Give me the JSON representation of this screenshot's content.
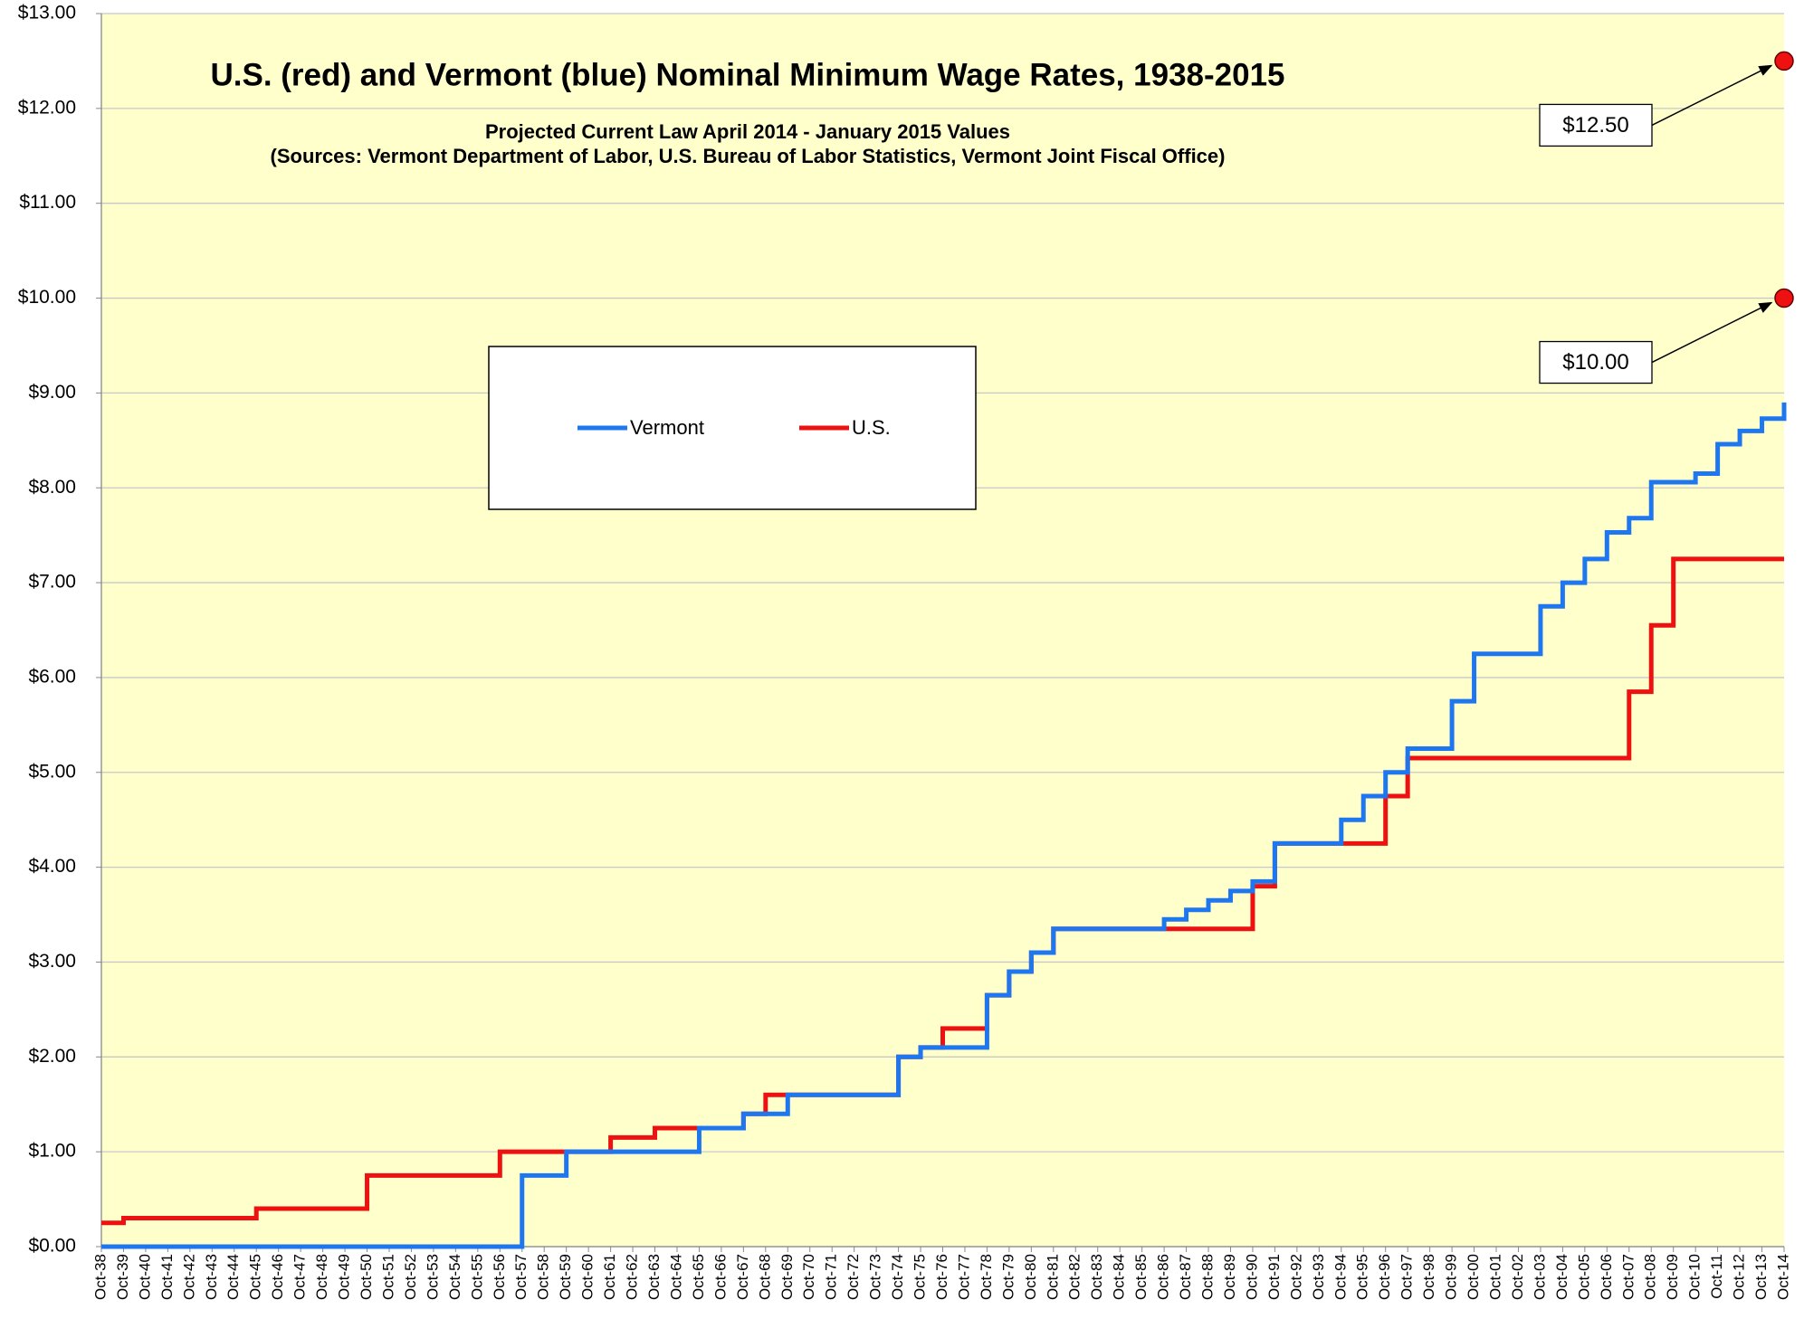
{
  "chart_data": {
    "type": "line",
    "step": "after",
    "title": "U.S. (red) and Vermont (blue) Nominal Minimum Wage Rates, 1938-2015",
    "subtitle": [
      "Projected Current Law April 2014 - January 2015 Values",
      "(Sources:  Vermont Department of Labor, U.S. Bureau of Labor Statistics,  Vermont Joint Fiscal Office)"
    ],
    "categories": [
      "Oct-38",
      "Oct-39",
      "Oct-40",
      "Oct-41",
      "Oct-42",
      "Oct-43",
      "Oct-44",
      "Oct-45",
      "Oct-46",
      "Oct-47",
      "Oct-48",
      "Oct-49",
      "Oct-50",
      "Oct-51",
      "Oct-52",
      "Oct-53",
      "Oct-54",
      "Oct-55",
      "Oct-56",
      "Oct-57",
      "Oct-58",
      "Oct-59",
      "Oct-60",
      "Oct-61",
      "Oct-62",
      "Oct-63",
      "Oct-64",
      "Oct-65",
      "Oct-66",
      "Oct-67",
      "Oct-68",
      "Oct-69",
      "Oct-70",
      "Oct-71",
      "Oct-72",
      "Oct-73",
      "Oct-74",
      "Oct-75",
      "Oct-76",
      "Oct-77",
      "Oct-78",
      "Oct-79",
      "Oct-80",
      "Oct-81",
      "Oct-82",
      "Oct-83",
      "Oct-84",
      "Oct-85",
      "Oct-86",
      "Oct-87",
      "Oct-88",
      "Oct-89",
      "Oct-90",
      "Oct-91",
      "Oct-92",
      "Oct-93",
      "Oct-94",
      "Oct-95",
      "Oct-96",
      "Oct-97",
      "Oct-98",
      "Oct-99",
      "Oct-00",
      "Oct-01",
      "Oct-02",
      "Oct-03",
      "Oct-04",
      "Oct-05",
      "Oct-06",
      "Oct-07",
      "Oct-08",
      "Oct-09",
      "Oct-10",
      "Oct-11",
      "Oct-12",
      "Oct-13",
      "Oct-14"
    ],
    "series": [
      {
        "name": "Vermont",
        "color": "#1f77f0",
        "values": [
          0,
          0,
          0,
          0,
          0,
          0,
          0,
          0,
          0,
          0,
          0,
          0,
          0,
          0,
          0,
          0,
          0,
          0,
          0,
          0.75,
          0.75,
          1.0,
          1.0,
          1.0,
          1.0,
          1.0,
          1.0,
          1.25,
          1.25,
          1.4,
          1.4,
          1.6,
          1.6,
          1.6,
          1.6,
          1.6,
          2.0,
          2.1,
          2.1,
          2.1,
          2.65,
          2.9,
          3.1,
          3.35,
          3.35,
          3.35,
          3.35,
          3.35,
          3.45,
          3.55,
          3.65,
          3.75,
          3.85,
          4.25,
          4.25,
          4.25,
          4.5,
          4.75,
          5.0,
          5.25,
          5.25,
          5.75,
          6.25,
          6.25,
          6.25,
          6.75,
          7.0,
          7.25,
          7.53,
          7.68,
          8.06,
          8.06,
          8.15,
          8.46,
          8.6,
          8.73,
          8.9
        ]
      },
      {
        "name": "U.S.",
        "color": "#ee1111",
        "values": [
          0.25,
          0.3,
          0.3,
          0.3,
          0.3,
          0.3,
          0.3,
          0.4,
          0.4,
          0.4,
          0.4,
          0.4,
          0.75,
          0.75,
          0.75,
          0.75,
          0.75,
          0.75,
          1.0,
          1.0,
          1.0,
          1.0,
          1.0,
          1.15,
          1.15,
          1.25,
          1.25,
          1.25,
          1.25,
          1.4,
          1.6,
          1.6,
          1.6,
          1.6,
          1.6,
          1.6,
          2.0,
          2.1,
          2.3,
          2.3,
          2.65,
          2.9,
          3.1,
          3.35,
          3.35,
          3.35,
          3.35,
          3.35,
          3.35,
          3.35,
          3.35,
          3.35,
          3.8,
          4.25,
          4.25,
          4.25,
          4.25,
          4.25,
          4.75,
          5.15,
          5.15,
          5.15,
          5.15,
          5.15,
          5.15,
          5.15,
          5.15,
          5.15,
          5.15,
          5.85,
          6.55,
          7.25,
          7.25,
          7.25,
          7.25,
          7.25,
          7.25
        ]
      }
    ],
    "annotations": [
      {
        "label": "$12.50",
        "value": 12.5,
        "color": "#ee1111"
      },
      {
        "label": "$10.00",
        "value": 10.0,
        "color": "#ee1111"
      }
    ],
    "ylim": [
      0,
      13
    ],
    "yticks": [
      {
        "value": 0,
        "label": "$0.00"
      },
      {
        "value": 1,
        "label": "$1.00"
      },
      {
        "value": 2,
        "label": "$2.00"
      },
      {
        "value": 3,
        "label": "$3.00"
      },
      {
        "value": 4,
        "label": "$4.00"
      },
      {
        "value": 5,
        "label": "$5.00"
      },
      {
        "value": 6,
        "label": "$6.00"
      },
      {
        "value": 7,
        "label": "$7.00"
      },
      {
        "value": 8,
        "label": "$8.00"
      },
      {
        "value": 9,
        "label": "$9.00"
      },
      {
        "value": 10,
        "label": "$10.00"
      },
      {
        "value": 11,
        "label": "$11.00"
      },
      {
        "value": 12,
        "label": "$12.00"
      },
      {
        "value": 13,
        "label": "$13.00"
      }
    ],
    "grid": true,
    "background": "#ffffcc"
  }
}
